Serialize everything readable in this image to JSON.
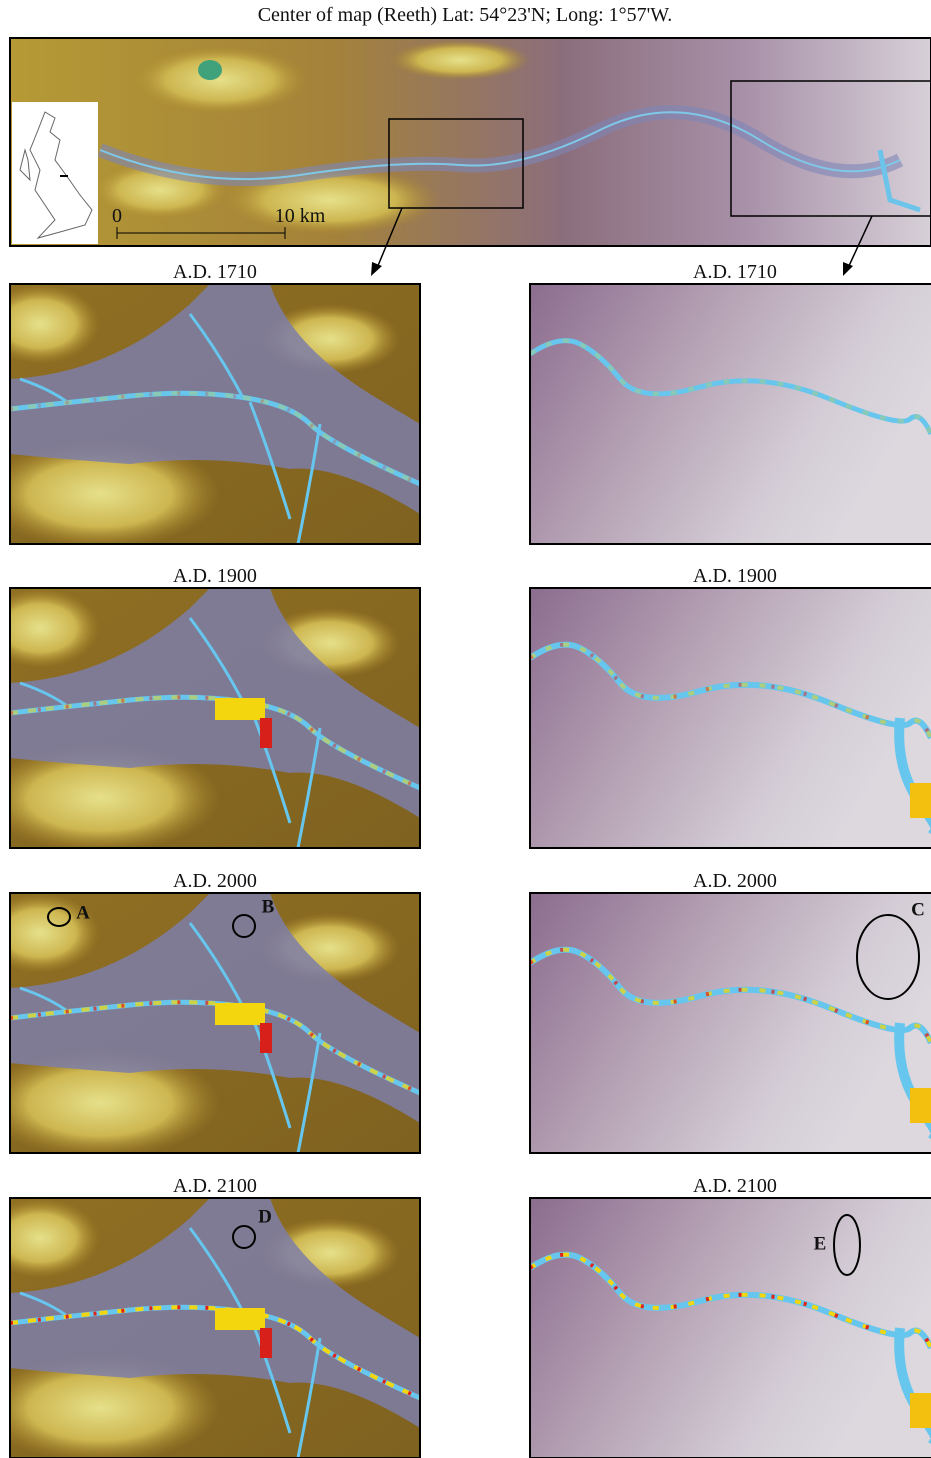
{
  "title": "Center of map (Reeth) Lat: 54°23'N;  Long: 1°57'W.",
  "overview": {
    "scale": [
      "0",
      "10 km"
    ]
  },
  "columns": [
    {
      "panels": [
        {
          "label": "A.D. 1710",
          "annotations": []
        },
        {
          "label": "A.D. 1900",
          "annotations": []
        },
        {
          "label": "A.D. 2000",
          "annotations": [
            "A",
            "B"
          ]
        },
        {
          "label": "A.D. 2100",
          "annotations": [
            "D"
          ]
        }
      ]
    },
    {
      "panels": [
        {
          "label": "A.D. 1710",
          "annotations": []
        },
        {
          "label": "A.D. 1900",
          "annotations": []
        },
        {
          "label": "A.D. 2000",
          "annotations": [
            "C"
          ]
        },
        {
          "label": "A.D. 2100",
          "annotations": [
            "E"
          ]
        }
      ]
    }
  ]
}
